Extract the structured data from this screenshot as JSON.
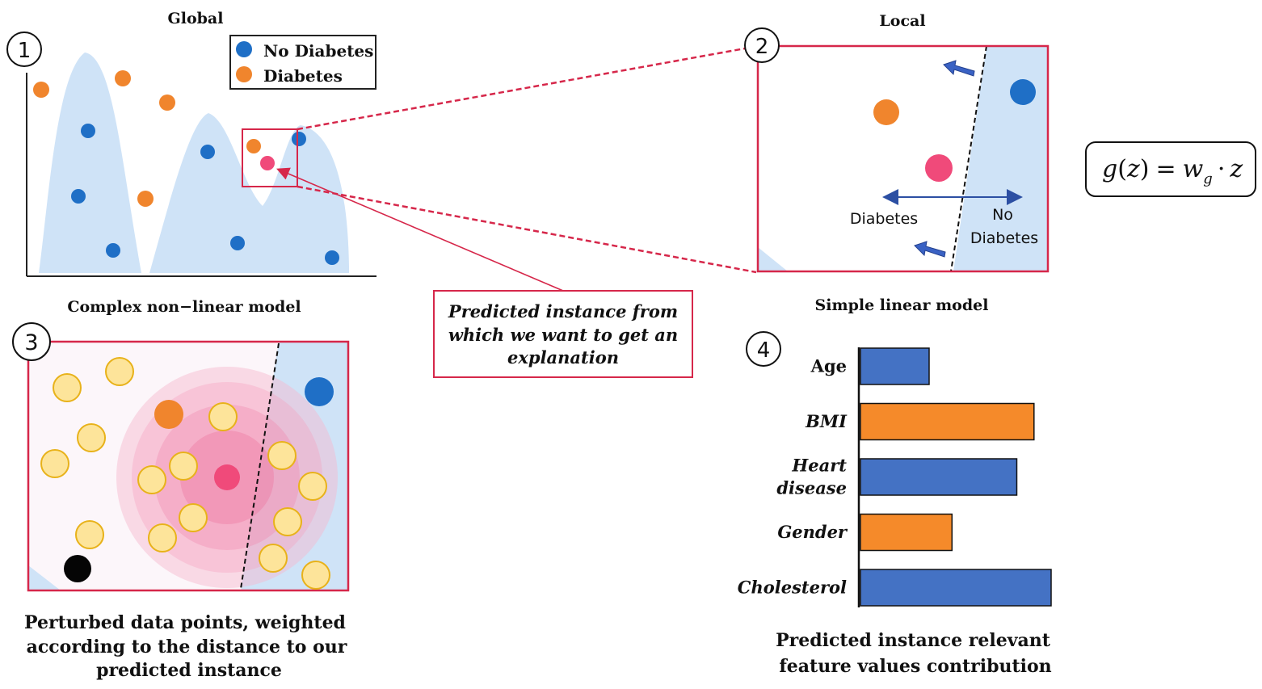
{
  "panel1": {
    "number": "1",
    "title": "Global",
    "caption": "Complex non−linear model",
    "legend": {
      "no_diabetes": "No Diabetes",
      "diabetes": "Diabetes"
    }
  },
  "panel2": {
    "number": "2",
    "title": "Local",
    "caption": "Simple linear model",
    "label_left": "Diabetes",
    "label_right_line1": "No",
    "label_right_line2": "Diabetes"
  },
  "panel3": {
    "number": "3",
    "caption_line1": "Perturbed data points,  weighted",
    "caption_line2": "according  to the distance to our",
    "caption_line3": "predicted instance"
  },
  "panel4": {
    "number": "4",
    "caption_line1": "Predicted instance relevant",
    "caption_line2": "feature values contribution"
  },
  "callout": {
    "line1": "Predicted instance from",
    "line2": "which we want to get an",
    "line3": "explanation"
  },
  "formula": {
    "g": "g",
    "open": "(",
    "z": "z",
    "close": ")",
    "eq": "=",
    "w": "w",
    "sub": "g",
    "dot": "·",
    "z2": "z"
  },
  "colors": {
    "no_diabetes": "#1f6fc6",
    "diabetes": "#f0852d",
    "predicted": "#f04a7a",
    "region": "#cfe3f7",
    "frame": "#d6274a",
    "bar_blue": "#4472c4",
    "bar_orange": "#f58a2a",
    "perturbed": "#fde49a"
  },
  "chart_data": {
    "type": "bar",
    "orientation": "horizontal",
    "categories": [
      "Age",
      "BMI",
      "Heart disease",
      "Gender",
      "Cholesterol"
    ],
    "category_lines": [
      [
        "Age"
      ],
      [
        "BMI"
      ],
      [
        "Heart",
        "disease"
      ],
      [
        "Gender"
      ],
      [
        "Cholesterol"
      ]
    ],
    "values": [
      0.36,
      0.91,
      0.82,
      0.48,
      1.0
    ],
    "colors": [
      "#4472c4",
      "#f58a2a",
      "#4472c4",
      "#f58a2a",
      "#4472c4"
    ]
  }
}
